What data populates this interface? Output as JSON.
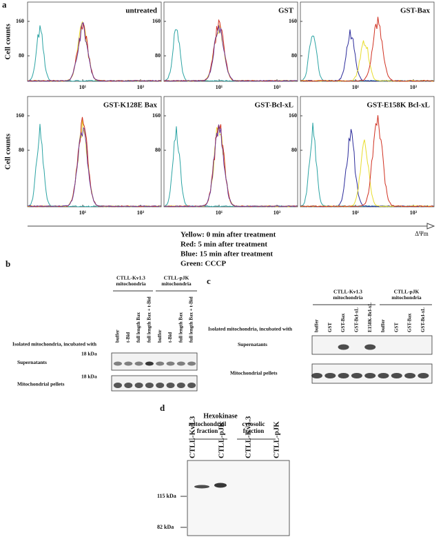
{
  "panel_a": {
    "label": "a",
    "y_axis_label": "Cell counts",
    "plots": [
      {
        "title": "untreated",
        "yticks": [
          "160",
          "80"
        ],
        "xticks": [
          "10¹",
          "10³"
        ]
      },
      {
        "title": "GST",
        "yticks": [
          "160",
          "80"
        ],
        "xticks": [
          "10¹",
          "10³"
        ]
      },
      {
        "title": "GST-Bax",
        "yticks": [
          "160",
          "80"
        ],
        "xticks": [
          "10¹",
          "10³"
        ]
      },
      {
        "title": "GST-K128E Bax",
        "yticks": [
          "160",
          "80"
        ],
        "xticks": [
          "10¹",
          "10³"
        ]
      },
      {
        "title": "GST-Bcl-xL",
        "yticks": [
          "160",
          "80"
        ],
        "xticks": [
          "10¹",
          "10³"
        ]
      },
      {
        "title": "GST-E158K Bcl-xL",
        "yticks": [
          "160",
          "80"
        ],
        "xticks": [
          "10¹",
          "10³"
        ]
      }
    ],
    "axis_label": "ΔΨm",
    "legend": [
      "Yellow: 0 min after treatment",
      "Red: 5 min after treatment",
      "Blue: 15 min after treatment",
      "Green: CCCP"
    ]
  },
  "panel_b": {
    "label": "b",
    "groups": [
      {
        "name": "CTLL-Kv1.3",
        "sub": "mitochondria"
      },
      {
        "name": "CTLL-pJK",
        "sub": "mitochondria"
      }
    ],
    "lanes": [
      "buffer",
      "t-Bid",
      "full length Bax",
      "full length Bax + t-Bid",
      "buffer",
      "t-Bid",
      "full length Bax",
      "full length Bax + t-Bid"
    ],
    "row_header": "Isolated mitochondria, incubated with",
    "rows": [
      {
        "name": "Supernatants",
        "marker": "18 kDa"
      },
      {
        "name": "Mitochondrial pellets",
        "marker": "18 kDa"
      }
    ]
  },
  "panel_c": {
    "label": "c",
    "groups": [
      {
        "name": "CTLL-Kv1.3",
        "sub": "mitochondria"
      },
      {
        "name": "CTLL-pJK",
        "sub": "mitochondria"
      }
    ],
    "lanes": [
      "buffer",
      "GST",
      "GST-Bax",
      "GST-Bcl-xL",
      "E158K-Bcl-xL",
      "buffer",
      "GST",
      "GST-Bax",
      "GST-Bcl-xL"
    ],
    "row_header": "Isolated mitochondria, incubated with",
    "rows": [
      "Supernatants",
      "Mitochondrial pellets"
    ]
  },
  "panel_d": {
    "label": "d",
    "title": "Hexokinase",
    "groups": [
      {
        "name": "mitochondrial",
        "sub": "fraction"
      },
      {
        "name": "cytosolic",
        "sub": "fraction"
      }
    ],
    "lanes": [
      "CTLL-Kv1.3",
      "CTLL-pJK",
      "CTLL-Kv1.3",
      "CTLL-pJK"
    ],
    "markers": [
      "115 kDa",
      "82 kDa"
    ]
  }
}
